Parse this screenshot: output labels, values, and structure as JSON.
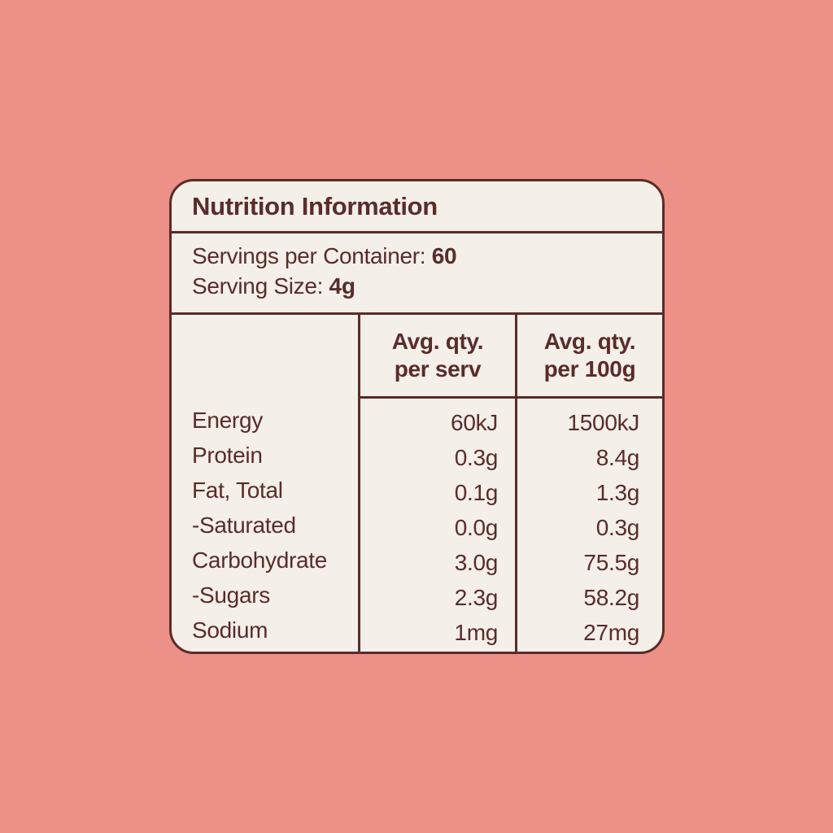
{
  "colors": {
    "background": "#ED9088",
    "card_background": "#F4EFE9",
    "ink": "#5A2C28"
  },
  "label": {
    "title": "Nutrition Information",
    "servings": {
      "per_container_label": "Servings per Container: ",
      "per_container_value": "60",
      "size_label": "Serving Size: ",
      "size_value": "4g"
    },
    "table": {
      "col_serv_header_line1": "Avg. qty.",
      "col_serv_header_line2": "per serv",
      "col_100g_header_line1": "Avg. qty.",
      "col_100g_header_line2": "per 100g",
      "rows": [
        {
          "label": "Energy",
          "per_serv": "60kJ",
          "per_100g": "1500kJ"
        },
        {
          "label": "Protein",
          "per_serv": "0.3g",
          "per_100g": "8.4g"
        },
        {
          "label": "Fat, Total",
          "per_serv": "0.1g",
          "per_100g": "1.3g"
        },
        {
          "label": "-Saturated",
          "per_serv": "0.0g",
          "per_100g": "0.3g"
        },
        {
          "label": "Carbohydrate",
          "per_serv": "3.0g",
          "per_100g": "75.5g"
        },
        {
          "label": "-Sugars",
          "per_serv": "2.3g",
          "per_100g": "58.2g"
        },
        {
          "label": "Sodium",
          "per_serv": "1mg",
          "per_100g": "27mg"
        }
      ]
    }
  }
}
